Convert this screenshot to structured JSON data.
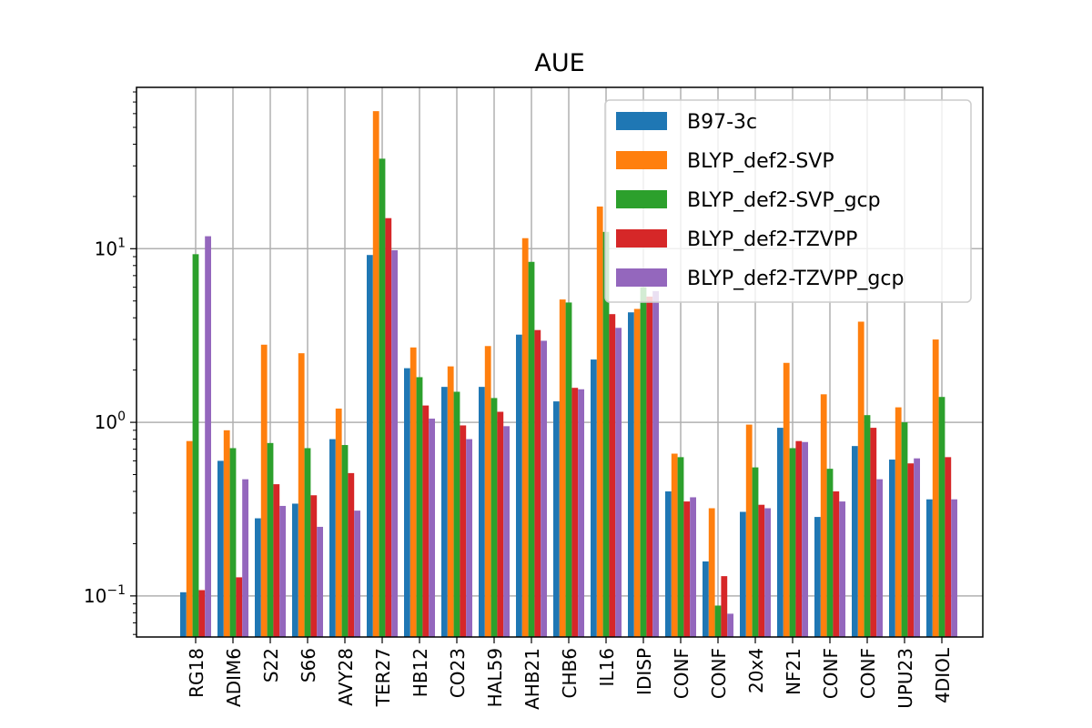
{
  "chart_data": {
    "type": "bar",
    "title": "AUE",
    "xlabel": "",
    "ylabel": "",
    "yscale": "log",
    "ylim": [
      0.058,
      85
    ],
    "grid": true,
    "legend_position": "top-right",
    "yticks": [
      {
        "base": "10",
        "exp": "1",
        "value": 10
      },
      {
        "base": "10",
        "exp": "0",
        "value": 1
      },
      {
        "base": "10",
        "exp": "−1",
        "value": 0.1
      }
    ],
    "categories": [
      "RG18",
      "ADIM6",
      "S22",
      "S66",
      "AVY28",
      "TER27",
      "HB12",
      "CO23",
      "HAL59",
      "AHB21",
      "CHB6",
      "IL16",
      "IDISP",
      "CONF",
      "CONF",
      "20x4",
      "NF21",
      "CONF",
      "CONF",
      "UPU23",
      "4DIOL"
    ],
    "series": [
      {
        "name": "B97-3c",
        "color": "#1f77b4",
        "values": [
          0.105,
          0.6,
          0.28,
          0.34,
          0.8,
          9.2,
          2.05,
          1.6,
          1.6,
          3.2,
          1.32,
          2.3,
          4.3,
          0.4,
          0.158,
          0.305,
          0.93,
          0.285,
          0.73,
          0.61,
          0.36
        ]
      },
      {
        "name": "BLYP_def2-SVP",
        "color": "#ff7f0e",
        "values": [
          0.78,
          0.9,
          2.8,
          2.5,
          1.2,
          62,
          2.7,
          2.1,
          2.75,
          11.5,
          5.1,
          17.5,
          4.5,
          0.66,
          0.32,
          0.97,
          2.2,
          1.45,
          3.8,
          1.22,
          3.0
        ]
      },
      {
        "name": "BLYP_def2-SVP_gcp",
        "color": "#2ca02c",
        "values": [
          9.3,
          0.71,
          0.76,
          0.71,
          0.74,
          33,
          1.82,
          1.5,
          1.38,
          8.4,
          4.9,
          12.5,
          6.0,
          0.63,
          0.088,
          0.55,
          0.71,
          0.54,
          1.1,
          1.0,
          1.4
        ]
      },
      {
        "name": "BLYP_def2-TZVPP",
        "color": "#d62728",
        "values": [
          0.108,
          0.128,
          0.44,
          0.38,
          0.51,
          15,
          1.25,
          0.96,
          1.15,
          3.4,
          1.58,
          4.2,
          5.3,
          0.35,
          0.13,
          0.335,
          0.78,
          0.4,
          0.93,
          0.58,
          0.63
        ]
      },
      {
        "name": "BLYP_def2-TZVPP_gcp",
        "color": "#9467bd",
        "values": [
          11.8,
          0.47,
          0.33,
          0.25,
          0.31,
          9.8,
          1.05,
          0.8,
          0.95,
          2.95,
          1.55,
          3.5,
          5.7,
          0.37,
          0.079,
          0.32,
          0.77,
          0.35,
          0.47,
          0.62,
          0.36
        ]
      }
    ]
  }
}
